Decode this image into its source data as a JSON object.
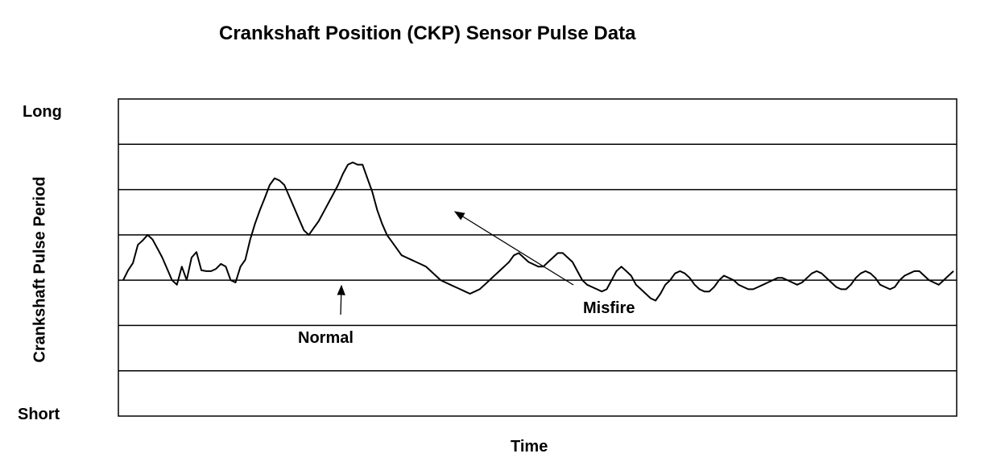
{
  "chart_data": {
    "type": "line",
    "title": "Crankshaft Position (CKP) Sensor Pulse Data",
    "xlabel": "Time",
    "ylabel": "Crankshaft Pulse Period",
    "y_tick_labels": {
      "top": "Long",
      "bottom": "Short"
    },
    "ylim": [
      0,
      7
    ],
    "grid": true,
    "horizontal_gridlines": 6,
    "x": [
      0,
      1,
      2,
      3,
      4,
      5,
      6,
      7,
      8,
      9,
      10,
      11,
      12,
      13,
      14,
      15,
      16,
      17,
      18,
      19,
      20,
      21,
      22,
      23,
      24,
      25,
      26,
      27,
      28,
      29,
      30,
      31,
      32,
      33,
      34,
      35,
      36,
      37,
      38,
      39,
      40,
      41,
      42,
      43,
      44,
      45,
      46,
      47,
      48,
      49,
      50,
      51,
      52,
      53,
      54,
      55,
      56,
      57,
      58,
      59,
      60,
      61,
      62,
      63,
      64,
      65,
      66,
      67,
      68,
      69,
      70,
      71,
      72,
      73,
      74,
      75,
      76,
      77,
      78,
      79,
      80,
      81,
      82,
      83,
      84,
      85,
      86,
      87,
      88,
      89,
      90,
      91,
      92,
      93,
      94,
      95,
      96,
      97,
      98,
      99,
      100,
      101,
      102,
      103,
      104,
      105,
      106,
      107,
      108,
      109,
      110,
      111,
      112,
      113,
      114,
      115,
      116,
      117,
      118,
      119,
      120,
      121,
      122,
      123,
      124,
      125,
      126,
      127,
      128,
      129,
      130,
      131,
      132,
      133,
      134,
      135,
      136,
      137,
      138,
      139,
      140,
      141,
      142,
      143,
      144,
      145,
      146,
      147,
      148,
      149,
      150,
      151,
      152,
      153,
      154,
      155,
      156,
      157,
      158,
      159,
      160,
      161,
      162,
      163,
      164,
      165,
      166,
      167,
      168,
      169,
      170
    ],
    "values": [
      3.0,
      3.22,
      3.38,
      3.78,
      3.88,
      4.0,
      3.9,
      3.7,
      3.5,
      3.25,
      3.0,
      2.9,
      3.3,
      3.0,
      3.5,
      3.62,
      3.22,
      3.2,
      3.2,
      3.25,
      3.36,
      3.3,
      3.0,
      2.95,
      3.3,
      3.45,
      3.9,
      4.25,
      4.55,
      4.82,
      5.1,
      5.25,
      5.2,
      5.1,
      4.85,
      4.6,
      4.35,
      4.1,
      4.0,
      4.15,
      4.3,
      4.5,
      4.7,
      4.9,
      5.1,
      5.35,
      5.55,
      5.6,
      5.55,
      5.55,
      5.25,
      4.95,
      4.55,
      4.25,
      4.0,
      3.85,
      3.7,
      3.55,
      3.5,
      3.45,
      3.4,
      3.35,
      3.3,
      3.2,
      3.1,
      3.0,
      2.95,
      2.9,
      2.85,
      2.8,
      2.75,
      2.7,
      2.75,
      2.8,
      2.9,
      3.0,
      3.1,
      3.2,
      3.3,
      3.4,
      3.55,
      3.6,
      3.5,
      3.4,
      3.35,
      3.3,
      3.3,
      3.4,
      3.5,
      3.6,
      3.6,
      3.5,
      3.4,
      3.2,
      3.0,
      2.9,
      2.85,
      2.8,
      2.75,
      2.8,
      3.0,
      3.2,
      3.3,
      3.2,
      3.1,
      2.9,
      2.8,
      2.7,
      2.6,
      2.55,
      2.7,
      2.9,
      3.0,
      3.15,
      3.2,
      3.15,
      3.05,
      2.9,
      2.8,
      2.75,
      2.75,
      2.85,
      3.0,
      3.1,
      3.05,
      3.0,
      2.9,
      2.85,
      2.8,
      2.8,
      2.85,
      2.9,
      2.95,
      3.0,
      3.05,
      3.05,
      3.0,
      2.95,
      2.9,
      2.95,
      3.05,
      3.15,
      3.2,
      3.15,
      3.05,
      2.95,
      2.85,
      2.8,
      2.8,
      2.9,
      3.05,
      3.15,
      3.2,
      3.15,
      3.05,
      2.9,
      2.85,
      2.8,
      2.85,
      3.0,
      3.1,
      3.15,
      3.2,
      3.2,
      3.1,
      3.0,
      2.95,
      2.9,
      3.0,
      3.1,
      3.2
    ],
    "annotations": [
      {
        "text": "Normal"
      },
      {
        "text": "Misfire"
      }
    ],
    "line_color": "#000000",
    "background_color": "#ffffff"
  }
}
